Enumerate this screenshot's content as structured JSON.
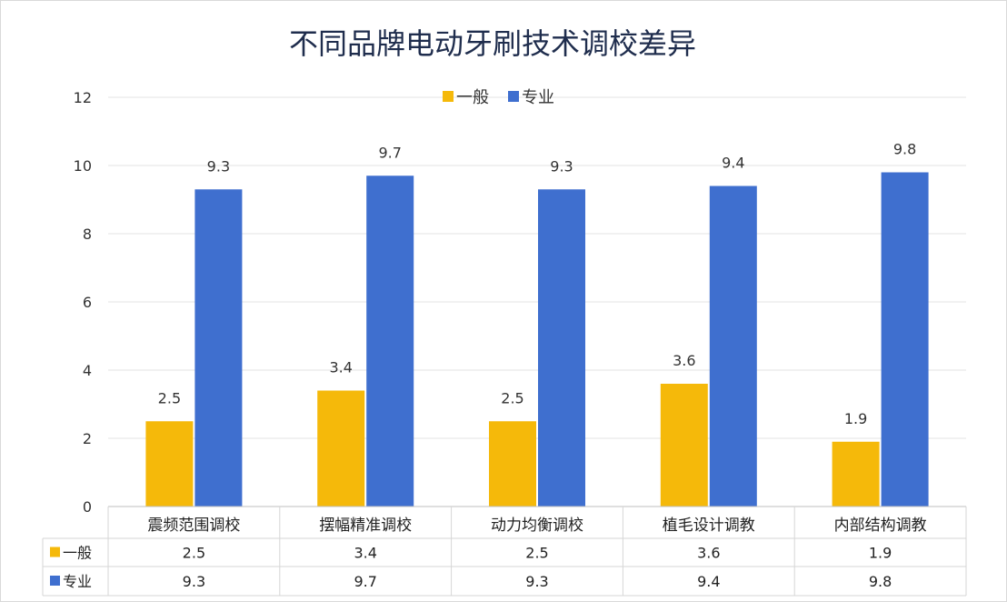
{
  "chart_data": {
    "type": "bar",
    "title": "不同品牌电动牙刷技术调校差异",
    "categories": [
      "震频范围调校",
      "摆幅精准调校",
      "动力均衡调校",
      "植毛设计调教",
      "内部结构调教"
    ],
    "series": [
      {
        "name": "一般",
        "values": [
          2.5,
          3.4,
          2.5,
          3.6,
          1.9
        ],
        "color": "#f5b90a"
      },
      {
        "name": "专业",
        "values": [
          9.3,
          9.7,
          9.3,
          9.4,
          9.8
        ],
        "color": "#3f6fcf"
      }
    ],
    "ylim": [
      0,
      12
    ],
    "yticks": [
      0,
      2,
      4,
      6,
      8,
      10,
      12
    ],
    "grid": true,
    "legend": "top-center",
    "data_table": true
  }
}
